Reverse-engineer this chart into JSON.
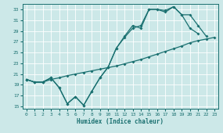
{
  "xlabel": "Humidex (Indice chaleur)",
  "bg_color": "#cce8e8",
  "grid_color": "#ffffff",
  "line_color": "#1a7070",
  "xlim": [
    -0.5,
    23.5
  ],
  "ylim": [
    14.5,
    34.0
  ],
  "xticks": [
    0,
    1,
    2,
    3,
    4,
    5,
    6,
    7,
    8,
    9,
    10,
    11,
    12,
    13,
    14,
    15,
    16,
    17,
    18,
    19,
    20,
    21,
    22,
    23
  ],
  "yticks": [
    15,
    17,
    19,
    21,
    23,
    25,
    27,
    29,
    31,
    33
  ],
  "line1_y": [
    20.0,
    19.5,
    19.5,
    20.0,
    20.3,
    20.7,
    21.0,
    21.3,
    21.6,
    21.9,
    22.2,
    22.5,
    22.9,
    23.3,
    23.7,
    24.2,
    24.7,
    25.2,
    25.7,
    26.2,
    26.8,
    27.2,
    27.5,
    27.8
  ],
  "line2_y": [
    20.0,
    19.5,
    19.5,
    20.3,
    18.5,
    15.5,
    16.8,
    15.2,
    17.8,
    20.3,
    22.3,
    25.8,
    27.8,
    29.5,
    30.0,
    33.0,
    33.0,
    32.5,
    33.5,
    32.0,
    32.0,
    30.0,
    28.0,
    null
  ],
  "line3_y": [
    20.0,
    19.5,
    19.5,
    20.3,
    18.5,
    15.5,
    16.8,
    15.2,
    17.8,
    20.3,
    22.3,
    25.8,
    28.0,
    30.0,
    29.5,
    33.0,
    33.0,
    32.8,
    33.5,
    32.0,
    29.5,
    28.5,
    null,
    null
  ]
}
